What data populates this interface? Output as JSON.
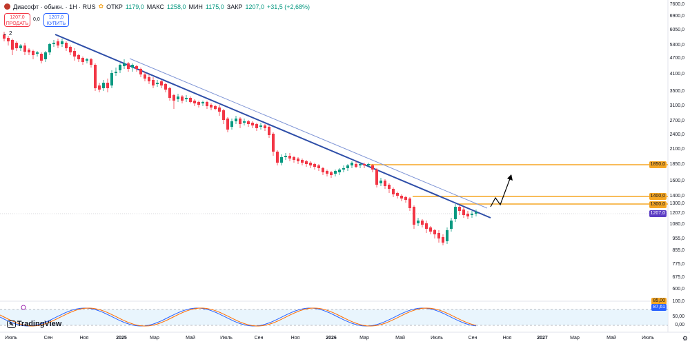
{
  "header": {
    "symbol": "Диасофт · обыкн. · 1Н · RUS",
    "open_label": "ОТКР",
    "open_value": "1179,0",
    "high_label": "МАКС",
    "high_value": "1258,0",
    "low_label": "МИН",
    "low_value": "1175,0",
    "close_label": "ЗАКР",
    "close_value": "1207,0",
    "change": "+31,5 (+2,68%)"
  },
  "trade": {
    "sell_price": "1207,0",
    "sell_label": "ПРОДАТЬ",
    "spread": "0,0",
    "buy_price": "1207,0",
    "buy_label": "КУПИТЬ"
  },
  "indicators_count": "2",
  "price_axis": [
    "7600,0",
    "6900,0",
    "6050,0",
    "5300,0",
    "4700,0",
    "4100,0",
    "3500,0",
    "3100,0",
    "2700,0",
    "2400,0",
    "2100,0",
    "1850,0",
    "1600,0",
    "1400,0",
    "1300,0",
    "1207,0",
    "1080,0",
    "955,0",
    "855,0",
    "775,0",
    "675,0",
    "600,0"
  ],
  "tags": {
    "level_1850": "1850,0",
    "level_1400": "1400,0",
    "level_1300": "1300,0",
    "last_price": "1207,0",
    "osc_k": "87,61",
    "osc_d": "85,00"
  },
  "osc_axis": [
    "100,0",
    "50,00",
    "0,00"
  ],
  "time_axis": [
    "Июль",
    "Сен",
    "Ноя",
    "2025",
    "Мар",
    "Май",
    "Июль",
    "Сен",
    "Ноя",
    "2026",
    "Мар",
    "Май",
    "Июль",
    "Сен",
    "Ноя",
    "2027",
    "Мар",
    "Май",
    "Июль"
  ],
  "branding": "TradingView",
  "colors": {
    "up": "#089981",
    "down": "#f23645",
    "trend": "#2e4ea8",
    "level": "#f5a623",
    "arrow": "#000000"
  }
}
